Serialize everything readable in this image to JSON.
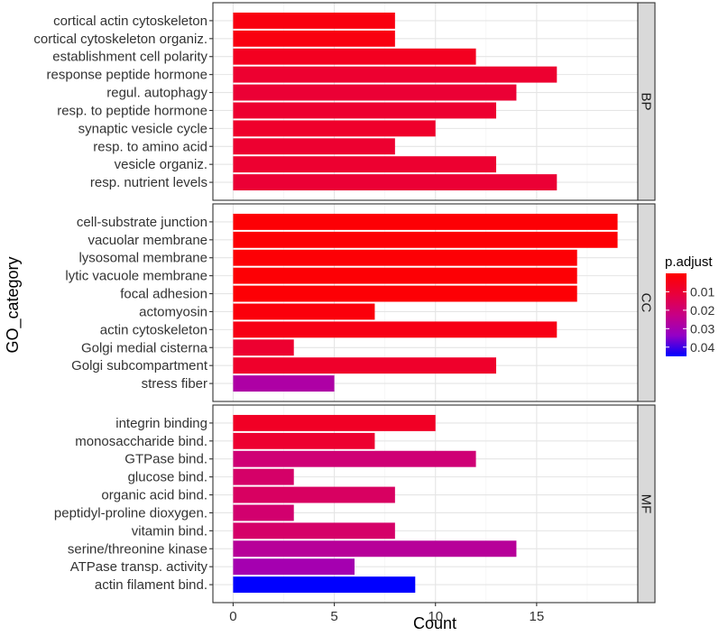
{
  "chart_data": {
    "type": "bar",
    "orientation": "horizontal",
    "xlabel": "Count",
    "ylabel": "GO_category",
    "xlim": [
      -1,
      20
    ],
    "x_ticks": [
      0,
      5,
      10,
      15
    ],
    "grid": true,
    "legend": {
      "title": "p.adjust",
      "placement": "right",
      "ticks": [
        0.01,
        0.02,
        0.03,
        0.04
      ],
      "tick_labels": [
        "0.01",
        "0.02",
        "0.03",
        "0.04"
      ],
      "range": [
        0.0,
        0.045
      ],
      "colors": {
        "low": "#ff0000",
        "high": "#0000ff"
      }
    },
    "facets": [
      {
        "name": "BP",
        "categories": [
          "cortical actin cytoskeleton",
          "cortical cytoskeleton organiz.",
          "establishment cell polarity",
          "response peptide hormone",
          "regul. autophagy",
          "resp. to peptide hormone",
          "synaptic vesicle cycle",
          "resp. to amino acid",
          "vesicle organiz.",
          "resp. nutrient levels"
        ],
        "values": [
          8,
          8,
          12,
          16,
          14,
          13,
          10,
          8,
          13,
          16
        ],
        "p_adjust": [
          0.003,
          0.003,
          0.006,
          0.009,
          0.01,
          0.009,
          0.008,
          0.009,
          0.009,
          0.01
        ]
      },
      {
        "name": "CC",
        "categories": [
          "cell-substrate junction",
          "vacuolar membrane",
          "lysosomal membrane",
          "lytic vacuole membrane",
          "focal adhesion",
          "actomyosin",
          "actin cytoskeleton",
          "Golgi medial cisterna",
          "Golgi subcompartment",
          "stress fiber"
        ],
        "values": [
          19,
          19,
          17,
          17,
          17,
          7,
          16,
          3,
          13,
          5
        ],
        "p_adjust": [
          0.001,
          0.001,
          0.001,
          0.001,
          0.001,
          0.002,
          0.004,
          0.009,
          0.008,
          0.028
        ]
      },
      {
        "name": "MF",
        "categories": [
          "integrin binding",
          "monosaccharide bind.",
          "GTPase bind.",
          "glucose bind.",
          "organic acid bind.",
          "peptidyl-proline dioxygen.",
          "vitamin bind.",
          "serine/threonine kinase",
          "ATPase transp. activity",
          "actin filament bind."
        ],
        "values": [
          10,
          7,
          12,
          3,
          8,
          3,
          8,
          14,
          6,
          9
        ],
        "p_adjust": [
          0.007,
          0.009,
          0.02,
          0.018,
          0.017,
          0.019,
          0.018,
          0.026,
          0.03,
          0.045
        ]
      }
    ]
  }
}
